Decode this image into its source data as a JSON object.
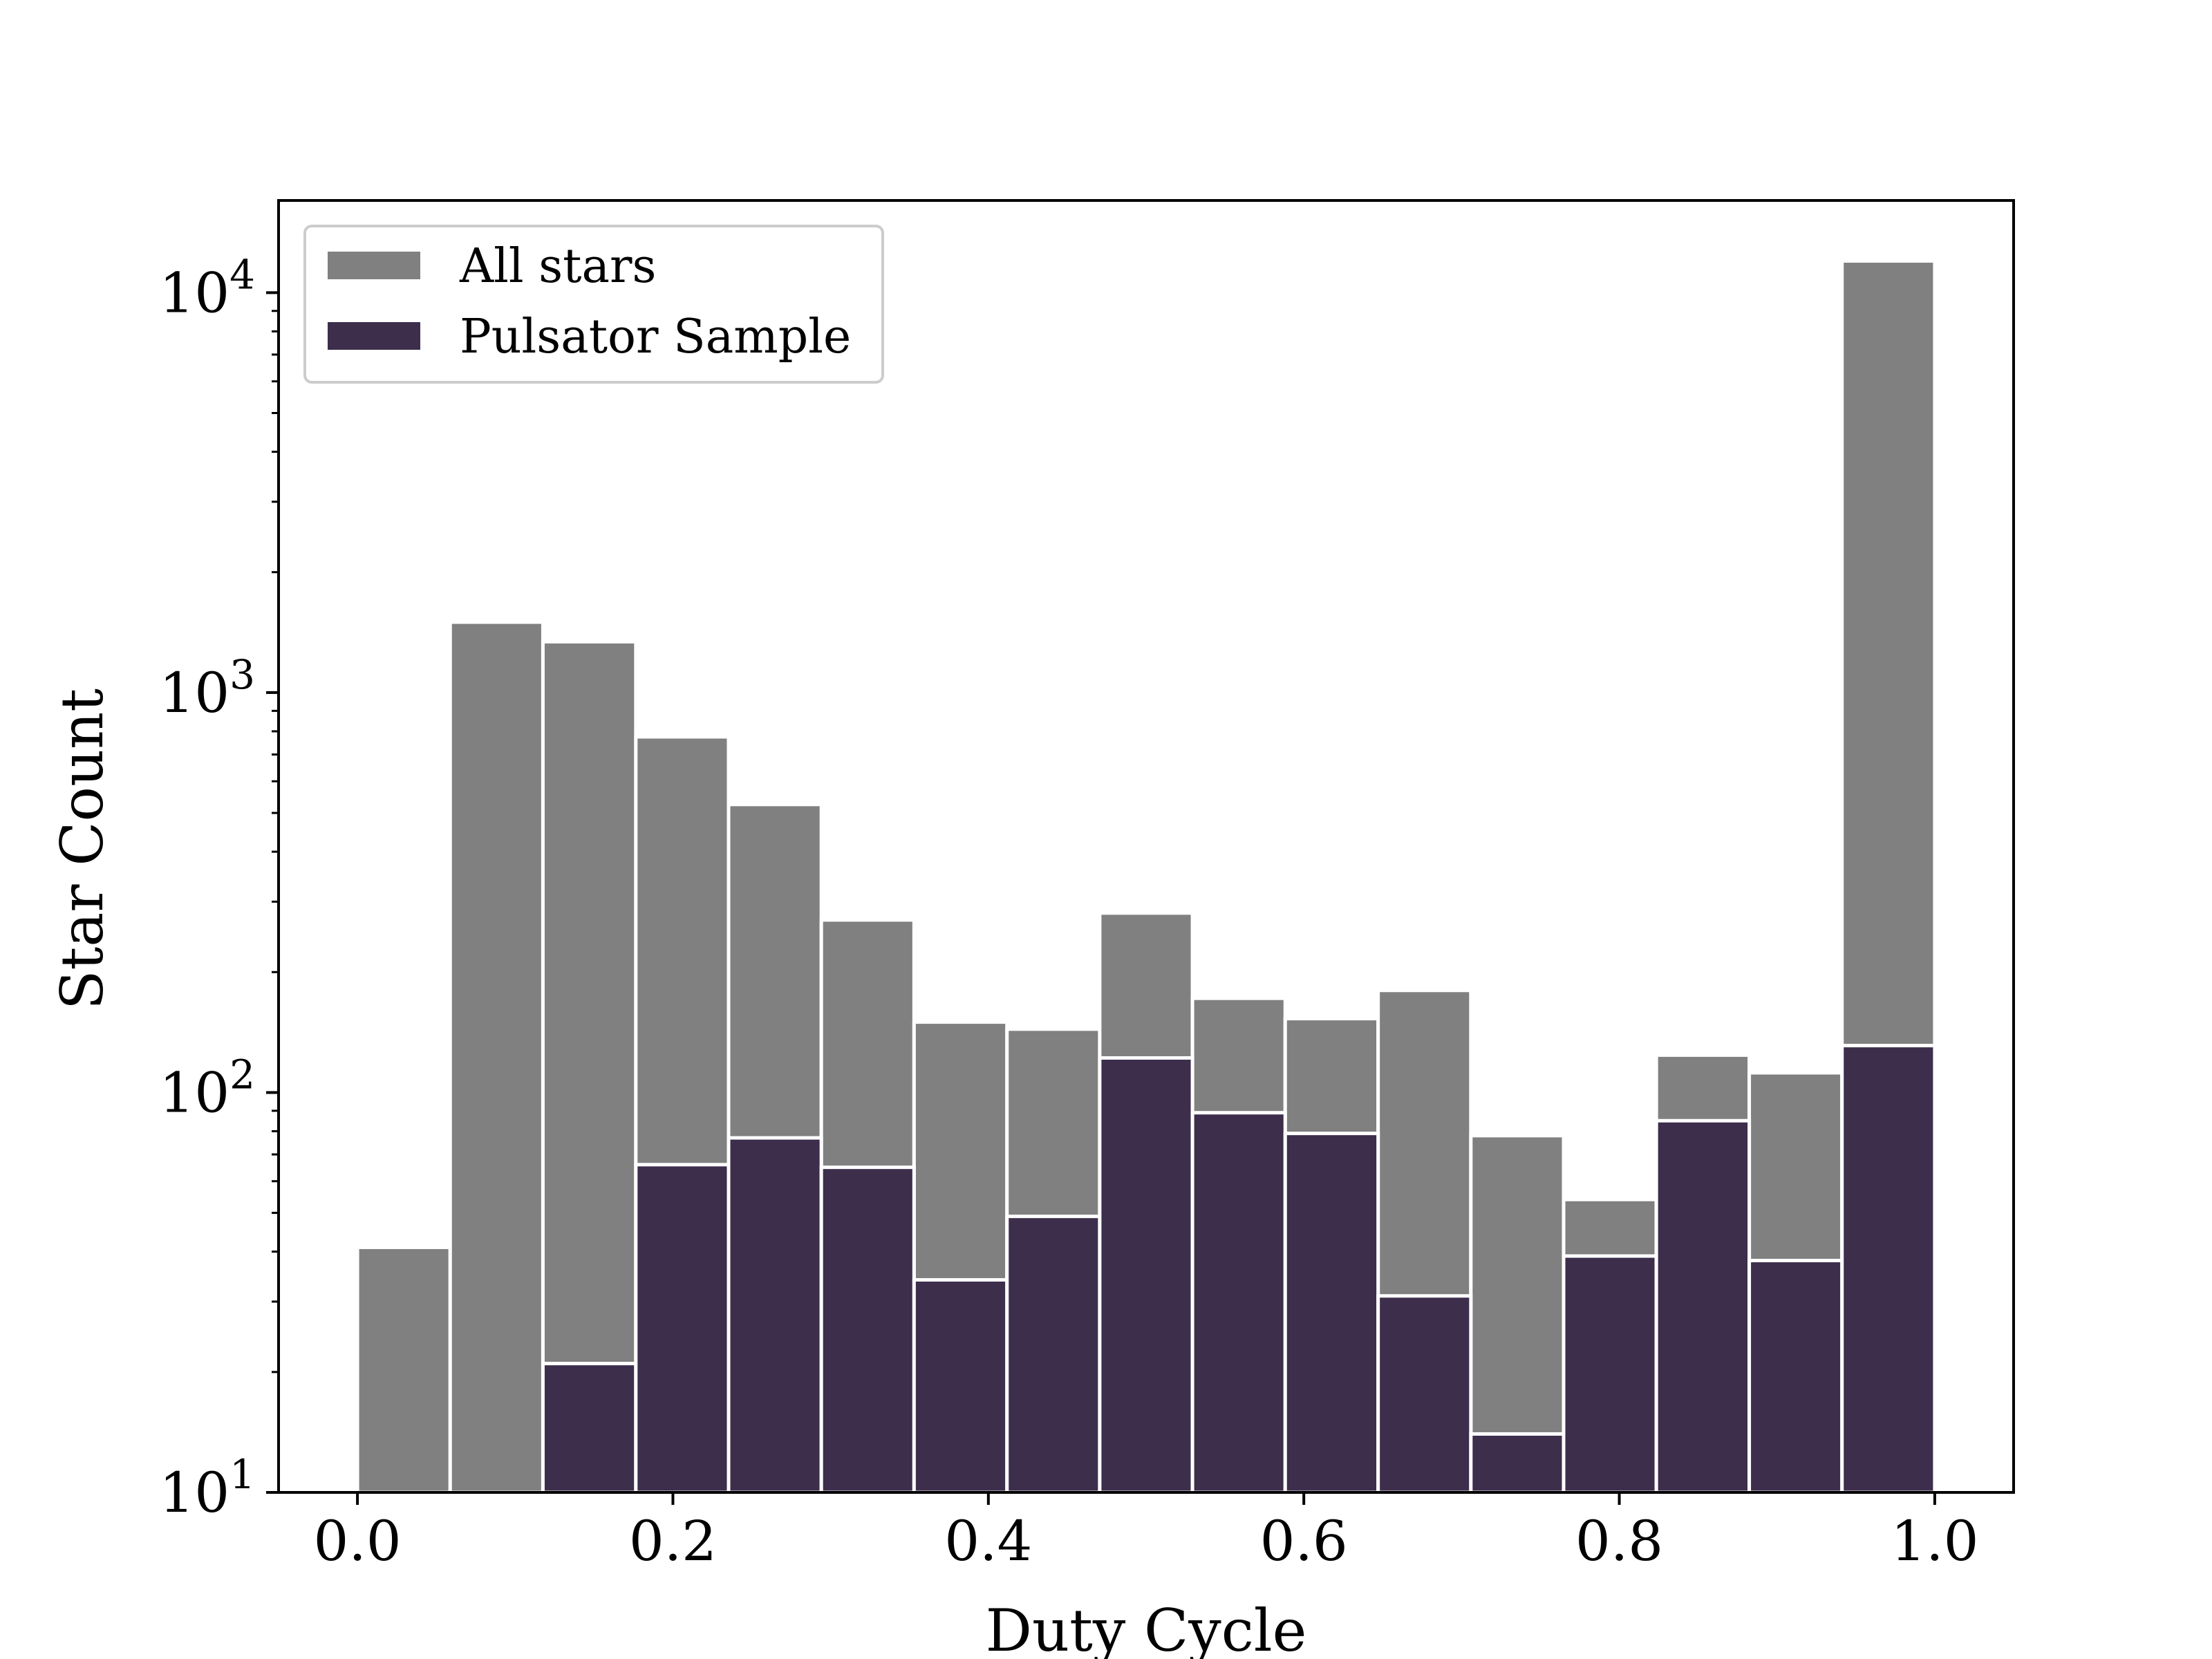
{
  "chart_data": {
    "type": "bar",
    "xlabel": "Duty Cycle",
    "ylabel": "Star Count",
    "yscale": "log",
    "xlim": [
      -0.05,
      1.05
    ],
    "ylim": [
      10,
      17000
    ],
    "bin_edges": [
      0.0,
      0.0588,
      0.1176,
      0.1765,
      0.2353,
      0.2941,
      0.3529,
      0.4118,
      0.4706,
      0.5294,
      0.5882,
      0.6471,
      0.7059,
      0.7647,
      0.8235,
      0.8824,
      0.9412,
      1.0
    ],
    "xticks": [
      {
        "value": 0.0,
        "label": "0.0"
      },
      {
        "value": 0.2,
        "label": "0.2"
      },
      {
        "value": 0.4,
        "label": "0.4"
      },
      {
        "value": 0.6,
        "label": "0.6"
      },
      {
        "value": 0.8,
        "label": "0.8"
      },
      {
        "value": 1.0,
        "label": "1.0"
      }
    ],
    "yticks": [
      {
        "value": 10,
        "base": "10",
        "exp": "1"
      },
      {
        "value": 100,
        "base": "10",
        "exp": "2"
      },
      {
        "value": 1000,
        "base": "10",
        "exp": "3"
      },
      {
        "value": 10000,
        "base": "10",
        "exp": "4"
      }
    ],
    "legend_position": "upper-left",
    "series": [
      {
        "name": "All stars",
        "color": "#808080",
        "values": [
          41,
          1500,
          1340,
          775,
          525,
          270,
          150,
          144,
          281,
          172,
          153,
          180,
          78,
          54,
          124,
          112,
          12000
        ]
      },
      {
        "name": "Pulsator Sample",
        "color": "#3d2e4c",
        "values": [
          0,
          0,
          21,
          66,
          77,
          65,
          34,
          49,
          122,
          89,
          79,
          31,
          14,
          39,
          85,
          38,
          131
        ]
      }
    ]
  }
}
